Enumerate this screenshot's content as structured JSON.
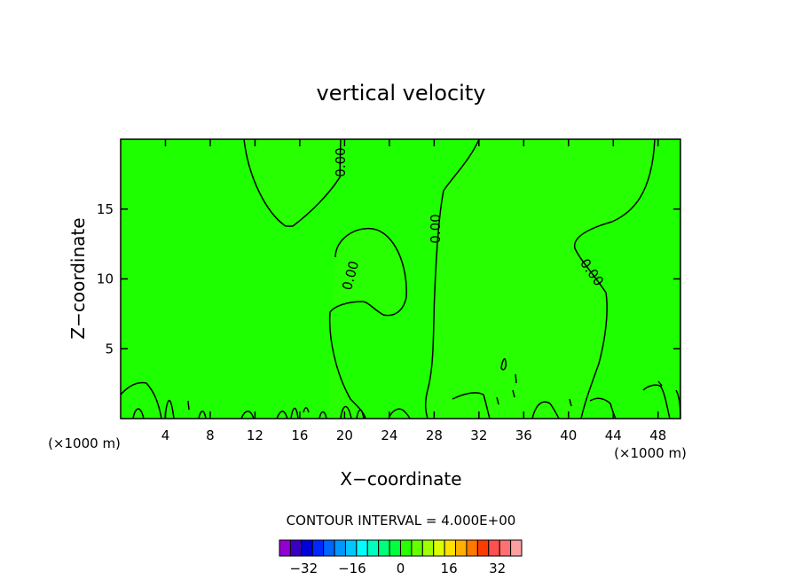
{
  "chart_data": {
    "type": "heatmap",
    "title": "vertical velocity",
    "xlabel": "X−coordinate",
    "ylabel": "Z−coordinate",
    "x_unit": "(×1000 m)",
    "y_unit": "(×1000 m)",
    "xlim": [
      0,
      50
    ],
    "ylim": [
      0,
      20
    ],
    "x_ticks": [
      4,
      8,
      12,
      16,
      20,
      24,
      28,
      32,
      36,
      40,
      44,
      48
    ],
    "y_ticks": [
      5,
      10,
      15
    ],
    "contour_interval_label": "CONTOUR INTERVAL = 4.000E+00",
    "contour_interval": 4,
    "contour_labels": [
      {
        "text": "0.00",
        "x": 20.2,
        "z": 18.5
      },
      {
        "text": "0.00",
        "x": 28.8,
        "z": 13.6
      },
      {
        "text": "0.00",
        "x": 21.0,
        "z": 10.4
      },
      {
        "text": "0.00",
        "x": 41.7,
        "z": 10.1
      }
    ],
    "colorbar": {
      "ticks": [
        "−32",
        "−16",
        "0",
        "16",
        "32"
      ],
      "tick_values": [
        -32,
        -16,
        0,
        16,
        32
      ],
      "range": [
        -40,
        40
      ],
      "colors": [
        "#9400d3",
        "#3a00c0",
        "#0000dc",
        "#0028ff",
        "#0064ff",
        "#0096ff",
        "#00c8ff",
        "#00ffff",
        "#00ffbe",
        "#00ff78",
        "#00ff3c",
        "#28ff00",
        "#64ff00",
        "#a0ff00",
        "#dcff00",
        "#ffe000",
        "#ffb000",
        "#ff7800",
        "#ff3c00",
        "#ff5050",
        "#ff7070",
        "#ffa0a0"
      ]
    },
    "grid": false,
    "legend": "none"
  }
}
